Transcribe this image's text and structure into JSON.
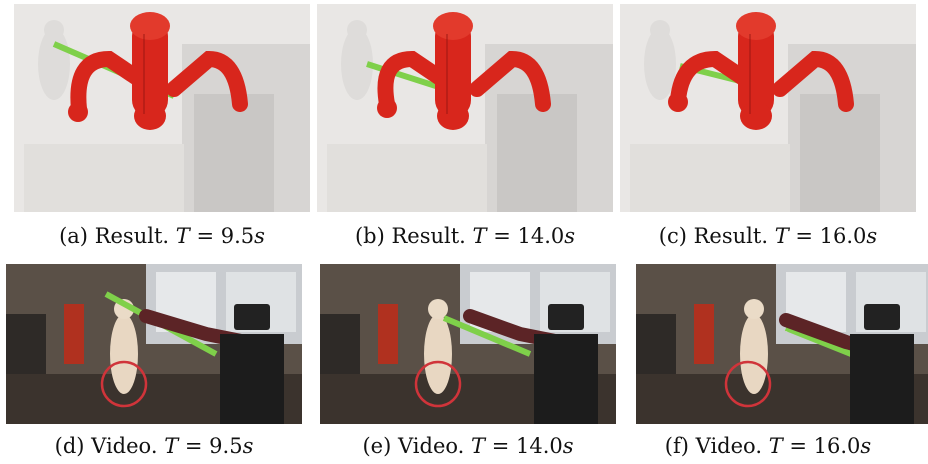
{
  "figure": {
    "panels": [
      {
        "label": "(a)",
        "kind": "Result.",
        "var": "T",
        "eq": " = 9.5",
        "unit": "s"
      },
      {
        "label": "(b)",
        "kind": "Result.",
        "var": "T",
        "eq": " = 14.0",
        "unit": "s"
      },
      {
        "label": "(c)",
        "kind": "Result.",
        "var": "T",
        "eq": " = 16.0",
        "unit": "s"
      },
      {
        "label": "(d)",
        "kind": "Video.",
        "var": "T",
        "eq": " = 9.5",
        "unit": "s"
      },
      {
        "label": "(e)",
        "kind": "Video.",
        "var": "T",
        "eq": " = 14.0",
        "unit": "s"
      },
      {
        "label": "(f)",
        "kind": "Video.",
        "var": "T",
        "eq": " = 16.0",
        "unit": "s"
      }
    ]
  },
  "colors": {
    "robot": "#d8261c",
    "robot_shadow": "#8e1410",
    "pointcloud": "#e8e6e4",
    "mannequin_pole": "#7fd04a",
    "highlight_circle": "#d0343a"
  },
  "icons": {
    "result_image": "robot-sphere-model-pointcloud",
    "video_image": "robot-video-frame"
  }
}
